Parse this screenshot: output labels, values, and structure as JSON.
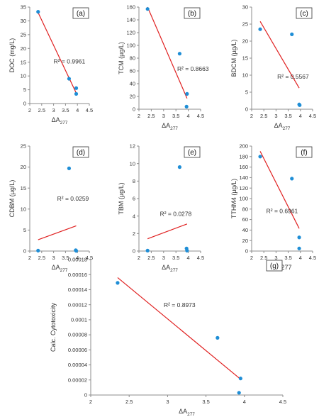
{
  "figure": {
    "colors": {
      "point": "#1f8ed6",
      "fit_line": "#e02020",
      "axis": "#8c8c8c",
      "text": "#333333",
      "label_box": "#333333"
    }
  },
  "chart_data": [
    {
      "panel": "(a)",
      "type": "scatter",
      "xlabel": "ΔA",
      "xlabel_sub": "277",
      "ylabel": "DOC (mg/L)",
      "xlim": [
        2,
        4.5
      ],
      "ylim": [
        0,
        35
      ],
      "xticks": [
        "2",
        "2.5",
        "3",
        "3.5",
        "4",
        "4.5"
      ],
      "yticks": [
        "0",
        "5",
        "10",
        "15",
        "20",
        "25",
        "30",
        "35"
      ],
      "points": [
        [
          2.35,
          33.3
        ],
        [
          3.65,
          9.0
        ],
        [
          3.95,
          5.6
        ],
        [
          3.95,
          3.5
        ]
      ],
      "fit": [
        [
          2.35,
          33.0
        ],
        [
          3.95,
          3.8
        ]
      ],
      "r2_label": "R² = 0.9961",
      "r2_pos": [
        3.0,
        14.5
      ]
    },
    {
      "panel": "(b)",
      "type": "scatter",
      "xlabel": "ΔA",
      "xlabel_sub": "277",
      "ylabel": "TCM (µg/L)",
      "xlim": [
        2,
        4.5
      ],
      "ylim": [
        0,
        160
      ],
      "xticks": [
        "2",
        "2.5",
        "3",
        "3.5",
        "4",
        "4.5"
      ],
      "yticks": [
        "0",
        "20",
        "40",
        "60",
        "80",
        "100",
        "120",
        "140",
        "160"
      ],
      "points": [
        [
          2.35,
          157
        ],
        [
          3.65,
          87
        ],
        [
          3.95,
          24
        ],
        [
          3.93,
          4
        ]
      ],
      "fit": [
        [
          2.35,
          160
        ],
        [
          3.95,
          17
        ]
      ],
      "r2_label": "R² = 0.8663",
      "r2_pos": [
        3.55,
        60
      ]
    },
    {
      "panel": "(c)",
      "type": "scatter",
      "xlabel": "ΔA",
      "xlabel_sub": "277",
      "ylabel": "BDCM (µg/L)",
      "xlim": [
        2,
        4.5
      ],
      "ylim": [
        0,
        30
      ],
      "xticks": [
        "2",
        "2.5",
        "3",
        "3.5",
        "4",
        "4.5"
      ],
      "yticks": [
        "0",
        "5",
        "10",
        "15",
        "20",
        "25",
        "30"
      ],
      "points": [
        [
          2.35,
          23.5
        ],
        [
          3.65,
          22
        ],
        [
          3.95,
          1.4
        ],
        [
          3.97,
          1.2
        ]
      ],
      "fit": [
        [
          2.35,
          25.8
        ],
        [
          3.95,
          6.2
        ]
      ],
      "r2_label": "R² = 0.5567",
      "r2_pos": [
        3.05,
        9
      ]
    },
    {
      "panel": "(d)",
      "type": "scatter",
      "xlabel": "ΔA",
      "xlabel_sub": "277",
      "ylabel": "CDBM (µg/L)",
      "xlim": [
        2,
        4.5
      ],
      "ylim": [
        0,
        25
      ],
      "xticks": [
        "2",
        "2.5",
        "3",
        "3.5",
        "4",
        "4.5"
      ],
      "yticks": [
        "0",
        "5",
        "10",
        "15",
        "20",
        "25"
      ],
      "points": [
        [
          2.35,
          0.1
        ],
        [
          3.65,
          19.7
        ],
        [
          3.93,
          0.2
        ],
        [
          3.95,
          0.05
        ]
      ],
      "fit": [
        [
          2.35,
          2.7
        ],
        [
          3.95,
          6.0
        ]
      ],
      "r2_label": "R² = 0.0259",
      "r2_pos": [
        3.15,
        12
      ]
    },
    {
      "panel": "(e)",
      "type": "scatter",
      "xlabel": "ΔA",
      "xlabel_sub": "277",
      "ylabel": "TBM (µg/L)",
      "xlim": [
        2,
        4.5
      ],
      "ylim": [
        0,
        12
      ],
      "xticks": [
        "2",
        "2.5",
        "3",
        "3.5",
        "4",
        "4.5"
      ],
      "yticks": [
        "0",
        "2",
        "4",
        "6",
        "8",
        "10",
        "12"
      ],
      "points": [
        [
          2.35,
          0.05
        ],
        [
          3.65,
          9.6
        ],
        [
          3.93,
          0.3
        ],
        [
          3.95,
          0.05
        ]
      ],
      "fit": [
        [
          2.35,
          1.4
        ],
        [
          3.95,
          3.1
        ]
      ],
      "r2_label": "R² = 0.0278",
      "r2_pos": [
        2.85,
        4
      ]
    },
    {
      "panel": "(f)",
      "type": "scatter",
      "xlabel": "ΔA277",
      "xlabel_sub": "",
      "ylabel": "TTHM4 (µg/L)",
      "xlim": [
        2,
        4.5
      ],
      "ylim": [
        0,
        200
      ],
      "xticks": [
        "2",
        "2.5",
        "3",
        "3.5",
        "4",
        "4.5"
      ],
      "yticks": [
        "0",
        "20",
        "40",
        "60",
        "80",
        "100",
        "120",
        "140",
        "160",
        "180",
        "200"
      ],
      "points": [
        [
          2.35,
          180
        ],
        [
          3.65,
          138
        ],
        [
          3.95,
          26
        ],
        [
          3.95,
          5
        ]
      ],
      "fit": [
        [
          2.35,
          190
        ],
        [
          3.95,
          43
        ]
      ],
      "r2_label": "R² = 0.6961",
      "r2_pos": [
        2.6,
        72
      ]
    },
    {
      "panel": "(g)",
      "type": "scatter",
      "xlabel": "ΔA",
      "xlabel_sub": "277",
      "ylabel": "Calc. Cytotoxicity",
      "xlim": [
        2,
        4.5
      ],
      "ylim": [
        0,
        0.00018
      ],
      "xticks": [
        "2",
        "2.5",
        "3",
        "3.5",
        "4",
        "4.5"
      ],
      "yticks": [
        "0",
        "0.00002",
        "0.00004",
        "0.00006",
        "0.00008",
        "0.0001",
        "0.00012",
        "0.00014",
        "0.00016",
        "0.00018"
      ],
      "points": [
        [
          2.35,
          0.000149
        ],
        [
          3.65,
          7.6e-05
        ],
        [
          3.95,
          2.2e-05
        ],
        [
          3.93,
          3e-06
        ]
      ],
      "fit": [
        [
          2.35,
          0.000156
        ],
        [
          3.95,
          2.1e-05
        ]
      ],
      "r2_label": "R² = 0.8973",
      "r2_pos": [
        2.95,
        0.000117
      ]
    }
  ]
}
